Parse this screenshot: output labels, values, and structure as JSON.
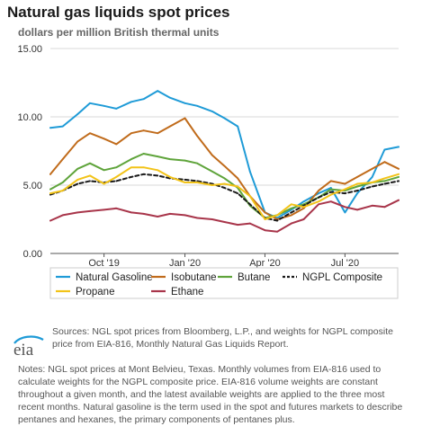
{
  "header": {
    "title": "Natural gas liquids spot prices",
    "subtitle": "dollars per million British thermal units"
  },
  "sources": "Sources: NGL spot prices from Bloomberg, L.P., and weights for NGPL composite price from EIA-816, Monthly Natural Gas Liquids Report.",
  "notes": "Notes: NGL spot prices at Mont Belvieu, Texas. Monthly volumes from EIA-816 used to calculate weights for the NGPL composite price. EIA-816 volume weights are constant throughout a given month, and the latest available weights are applied to the three most recent months. Natural gasoline is the term used in the spot and futures markets to describe pentanes and hexanes, the primary components of pentanes plus.",
  "logo_text": "eia",
  "chart_data": {
    "type": "line",
    "title": "Natural gas liquids spot prices",
    "subtitle": "dollars per million British thermal units",
    "ylim": [
      0,
      15
    ],
    "yticks": [
      0,
      5,
      10,
      15
    ],
    "ytick_labels": [
      "0.00",
      "5.00",
      "10.00",
      "15.00"
    ],
    "xlim": [
      "2019-08-01",
      "2020-08-31"
    ],
    "xticks": [
      "2019-10-01",
      "2020-01-01",
      "2020-04-01",
      "2020-07-01"
    ],
    "xtick_labels": [
      "Oct '19",
      "Jan '20",
      "Apr '20",
      "Jul '20"
    ],
    "grid": "horizontal",
    "legend_position": "bottom",
    "x": [
      "2019-08-01",
      "2019-08-15",
      "2019-09-01",
      "2019-09-15",
      "2019-10-01",
      "2019-10-15",
      "2019-11-01",
      "2019-11-15",
      "2019-12-01",
      "2019-12-15",
      "2020-01-01",
      "2020-01-15",
      "2020-02-01",
      "2020-02-15",
      "2020-03-01",
      "2020-03-15",
      "2020-04-01",
      "2020-04-15",
      "2020-05-01",
      "2020-05-15",
      "2020-06-01",
      "2020-06-15",
      "2020-07-01",
      "2020-07-15",
      "2020-08-01",
      "2020-08-15",
      "2020-08-31"
    ],
    "series": [
      {
        "name": "Natural Gasoline",
        "color": "#1f9bd7",
        "dash": "solid",
        "values": [
          9.2,
          9.3,
          10.2,
          11.0,
          10.8,
          10.6,
          11.1,
          11.3,
          11.9,
          11.4,
          11.0,
          10.8,
          10.4,
          9.9,
          9.3,
          6.0,
          3.0,
          2.6,
          3.2,
          3.8,
          4.4,
          4.8,
          3.0,
          4.4,
          5.6,
          7.6,
          7.8
        ]
      },
      {
        "name": "Isobutane",
        "color": "#c06b1b",
        "dash": "solid",
        "values": [
          5.8,
          6.9,
          8.2,
          8.8,
          8.4,
          8.0,
          8.8,
          9.0,
          8.8,
          9.3,
          9.9,
          8.6,
          7.2,
          6.4,
          5.5,
          4.2,
          3.0,
          2.5,
          2.8,
          3.3,
          4.6,
          5.3,
          5.1,
          5.6,
          6.2,
          6.7,
          6.2
        ]
      },
      {
        "name": "Butane",
        "color": "#5fa43b",
        "dash": "solid",
        "values": [
          4.7,
          5.2,
          6.2,
          6.6,
          6.1,
          6.3,
          6.9,
          7.3,
          7.1,
          6.9,
          6.8,
          6.6,
          6.0,
          5.5,
          4.8,
          3.5,
          2.6,
          2.8,
          3.3,
          3.6,
          4.1,
          4.7,
          4.6,
          4.9,
          5.2,
          5.3,
          5.6
        ]
      },
      {
        "name": "NGPL Composite",
        "color": "#1a1a1a",
        "dash": "dashed",
        "values": [
          4.3,
          4.6,
          5.1,
          5.3,
          5.2,
          5.3,
          5.6,
          5.8,
          5.7,
          5.5,
          5.4,
          5.3,
          5.1,
          4.8,
          4.4,
          3.6,
          2.6,
          2.4,
          3.0,
          3.5,
          4.1,
          4.5,
          4.4,
          4.6,
          4.9,
          5.1,
          5.3
        ]
      },
      {
        "name": "Propane",
        "color": "#f2c318",
        "dash": "solid",
        "values": [
          4.4,
          4.6,
          5.4,
          5.7,
          5.1,
          5.6,
          6.3,
          6.3,
          6.1,
          5.6,
          5.2,
          5.2,
          5.0,
          5.1,
          4.9,
          4.2,
          2.5,
          2.8,
          3.6,
          3.4,
          3.8,
          4.3,
          4.7,
          5.1,
          5.2,
          5.5,
          5.8
        ]
      },
      {
        "name": "Ethane",
        "color": "#a8354a",
        "dash": "solid",
        "values": [
          2.4,
          2.8,
          3.0,
          3.1,
          3.2,
          3.3,
          3.0,
          2.9,
          2.7,
          2.9,
          2.8,
          2.6,
          2.5,
          2.3,
          2.1,
          2.2,
          1.7,
          1.6,
          2.2,
          2.5,
          3.6,
          3.8,
          3.4,
          3.2,
          3.5,
          3.4,
          3.9
        ]
      }
    ]
  }
}
